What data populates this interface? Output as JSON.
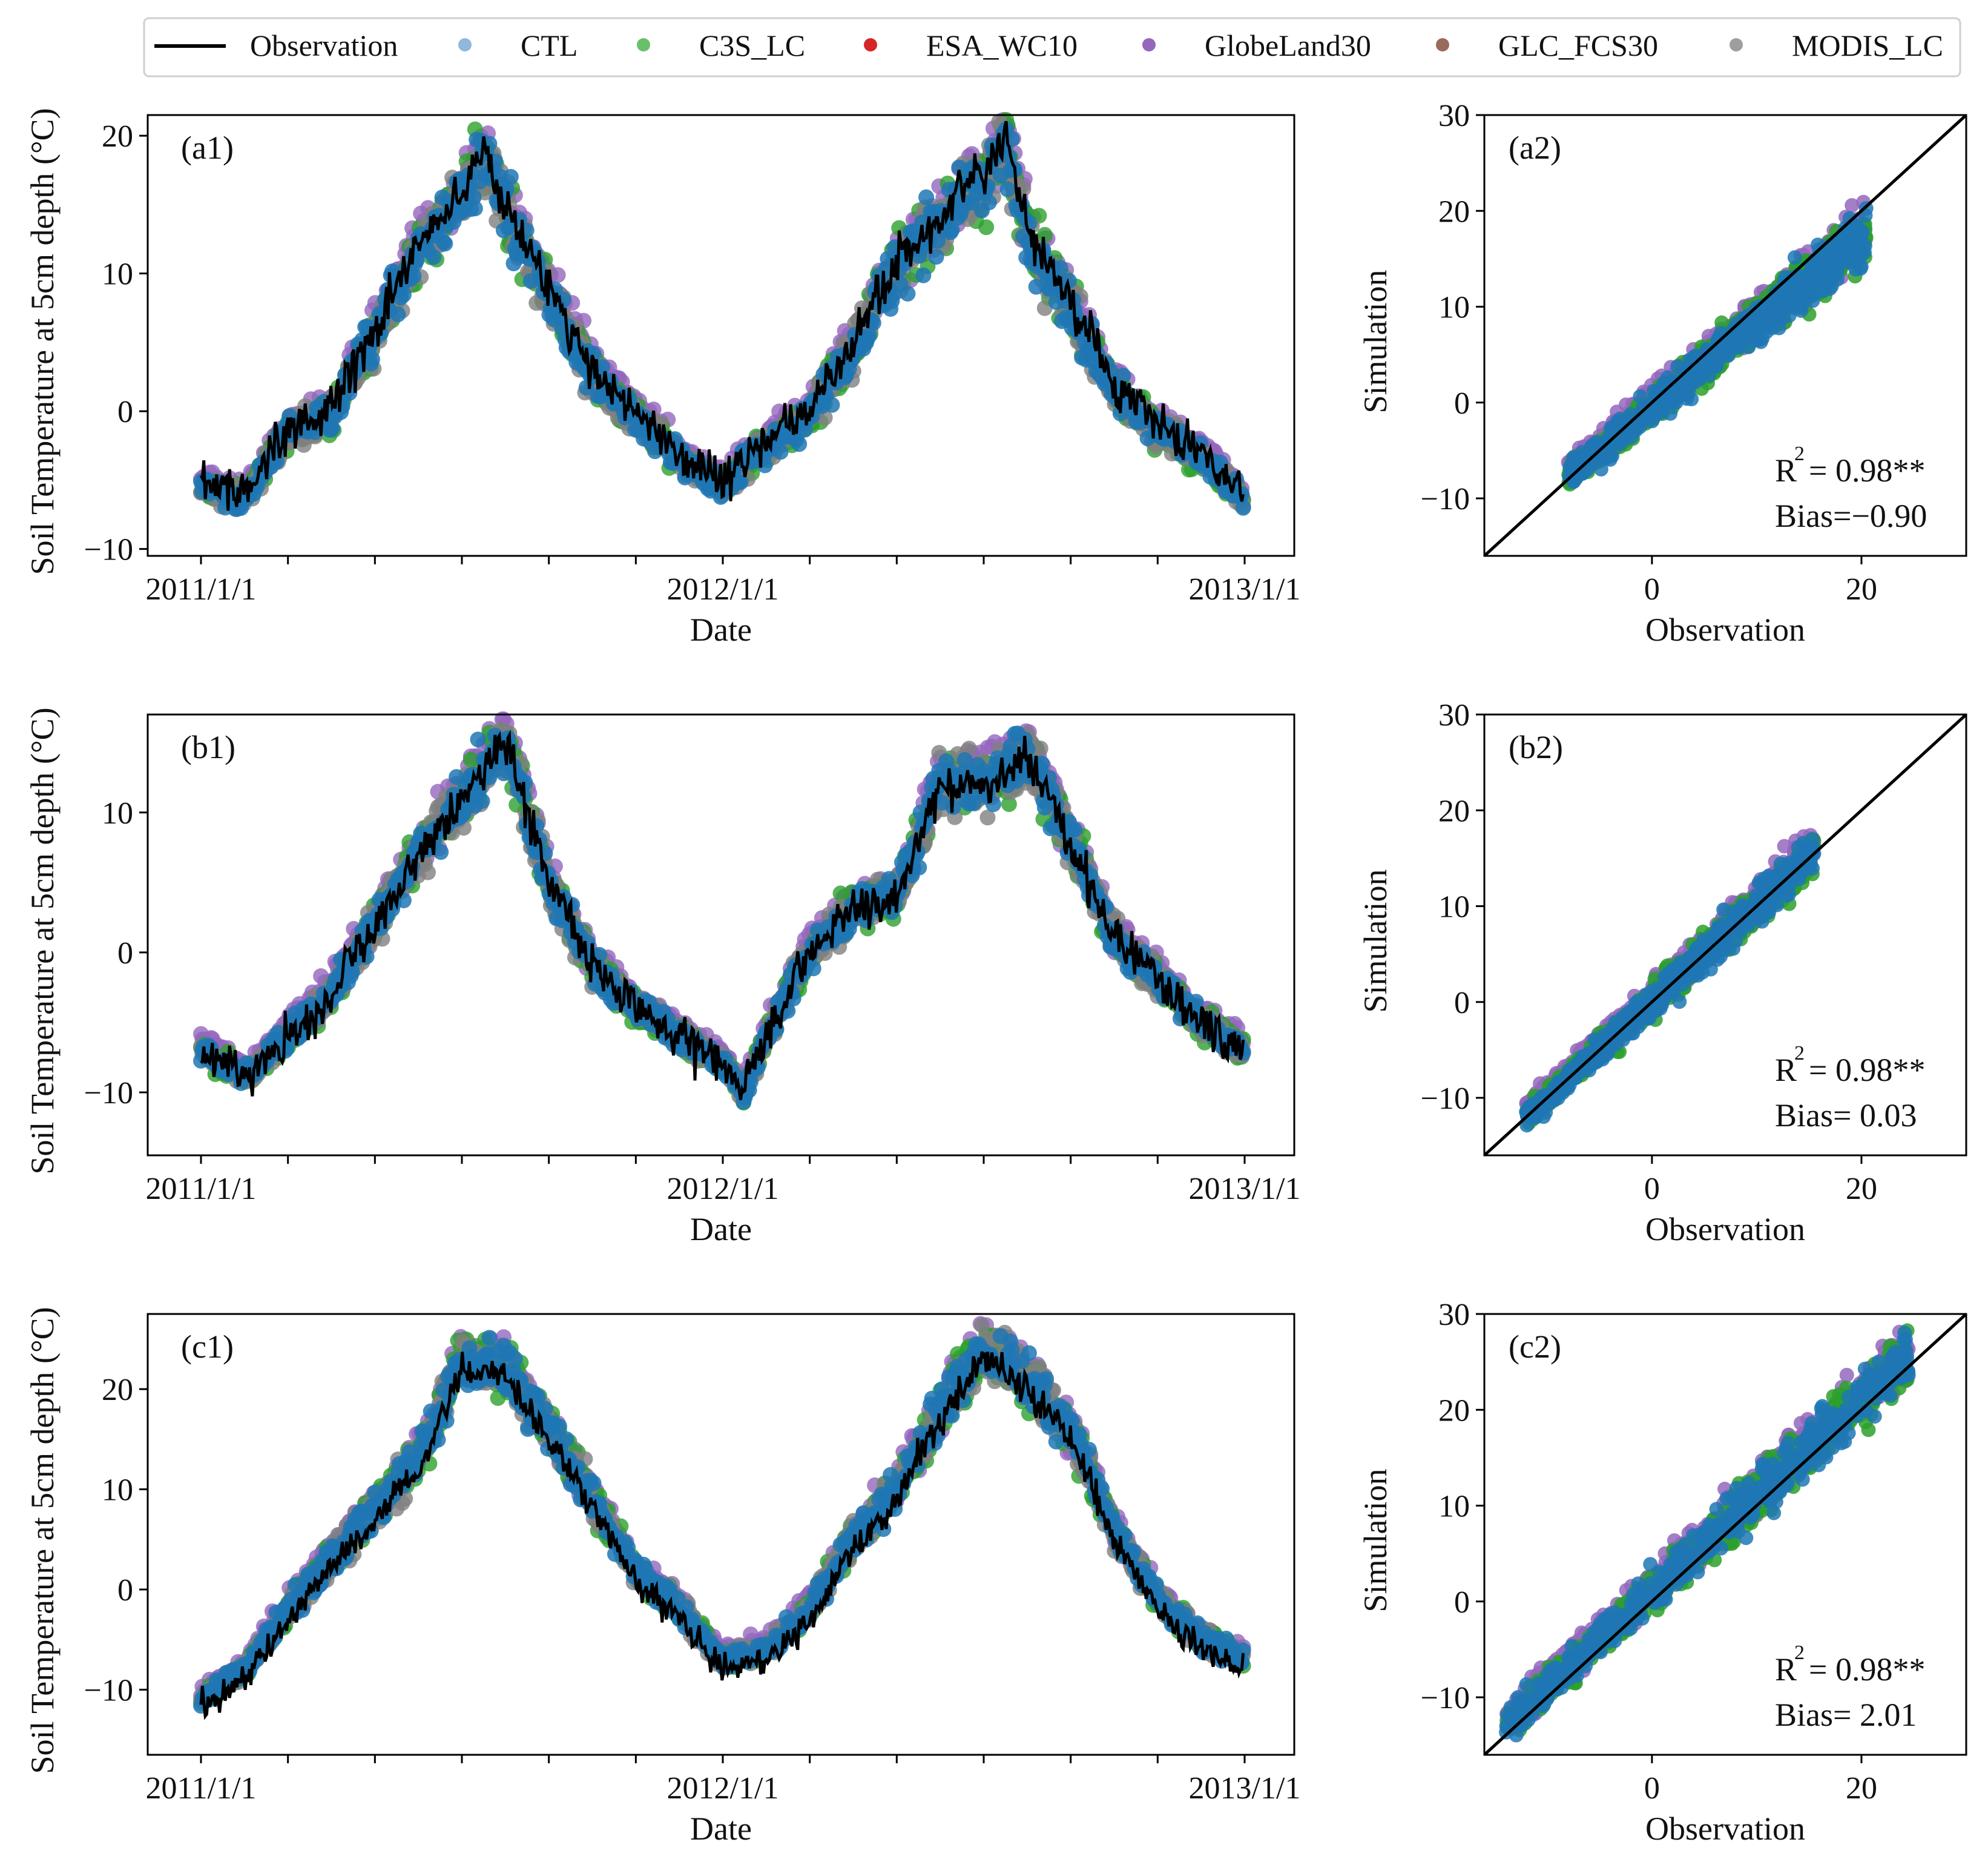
{
  "legend": {
    "entries": [
      {
        "name": "Observation",
        "kind": "line",
        "color": "#000000"
      },
      {
        "name": "CTL",
        "kind": "dot",
        "color": "#8fb8dc"
      },
      {
        "name": "C3S_LC",
        "kind": "dot",
        "color": "#6abf6a"
      },
      {
        "name": "ESA_WC10",
        "kind": "dot",
        "color": "#d62728"
      },
      {
        "name": "GlobeLand30",
        "kind": "dot",
        "color": "#9467bd"
      },
      {
        "name": "GLC_FCS30",
        "kind": "dot",
        "color": "#9a6a5a"
      },
      {
        "name": "MODIS_LC",
        "kind": "dot",
        "color": "#9e9e9e"
      }
    ]
  },
  "colors": {
    "observation": "#000000",
    "ctl_marker": "#1f77b4",
    "c3s_marker": "#2ca02c",
    "globeland_marker": "#9467bd",
    "modis_marker": "#7f7f7f"
  },
  "chart_data": [
    {
      "id": "a1",
      "type": "line",
      "label": "(a1)",
      "title": "",
      "xlabel": "Date",
      "ylabel": "Soil Temperature at 5cm depth (°C)",
      "x_ticks": [
        "2011/1/1",
        "2012/1/1",
        "2013/1/1"
      ],
      "ylim": [
        -10.5,
        21.5
      ],
      "y_ticks": [
        -10,
        0,
        10,
        20
      ],
      "y_tick_labels": [
        "−10",
        "0",
        "10",
        "20"
      ],
      "series": [
        {
          "name": "Observation",
          "month": [
            0,
            1,
            2,
            3,
            4,
            5,
            5.5,
            6,
            6.5,
            7,
            8,
            9,
            10,
            11,
            12,
            13,
            14,
            15,
            16,
            17,
            17.5,
            18,
            18.5,
            19,
            20,
            21,
            22,
            23,
            24
          ],
          "values": [
            -5,
            -6,
            -1,
            0,
            6,
            12,
            14,
            16,
            19,
            15,
            9,
            3,
            0,
            -3,
            -5,
            -2,
            0,
            5,
            11,
            14,
            16,
            17,
            20,
            13,
            8,
            2,
            -1,
            -3,
            -6
          ]
        }
      ],
      "sim_offset": -0.9,
      "noise": 1.7
    },
    {
      "id": "a2",
      "type": "scatter",
      "label": "(a2)",
      "xlabel": "Observation",
      "ylabel": "Simulation",
      "xlim": [
        -16,
        30
      ],
      "ylim": [
        -16,
        30
      ],
      "x_ticks": [
        0,
        20
      ],
      "y_ticks": [
        -10,
        0,
        10,
        20,
        30
      ],
      "y_tick_labels": [
        "−10",
        "0",
        "10",
        "20",
        "30"
      ],
      "obs_range": [
        -8,
        20.5
      ],
      "bias": -0.9,
      "noise": 1.6,
      "r2_label": "R",
      "r2_value": "= 0.98**",
      "bias_label": "Bias=−0.90"
    },
    {
      "id": "b1",
      "type": "line",
      "label": "(b1)",
      "title": "",
      "xlabel": "Date",
      "ylabel": "Soil Temperature at 5cm depth (°C)",
      "x_ticks": [
        "2011/1/1",
        "2012/1/1",
        "2013/1/1"
      ],
      "ylim": [
        -14.5,
        17
      ],
      "y_ticks": [
        -10,
        0,
        10
      ],
      "y_tick_labels": [
        "−10",
        "0",
        "10"
      ],
      "series": [
        {
          "name": "Observation",
          "month": [
            0,
            1,
            2,
            3,
            4,
            5,
            6,
            6.5,
            7,
            8,
            9,
            10,
            11,
            12,
            12.5,
            13,
            14,
            15,
            16,
            17,
            18,
            19,
            20,
            21,
            22,
            23,
            24
          ],
          "values": [
            -7,
            -9,
            -6,
            -3,
            2,
            7,
            11,
            13,
            15,
            5,
            -1,
            -4,
            -6,
            -8,
            -10,
            -6,
            0,
            3,
            4,
            12,
            12,
            14,
            8,
            1,
            -2,
            -5,
            -7
          ]
        }
      ],
      "sim_offset": 0.03,
      "noise": 1.4
    },
    {
      "id": "b2",
      "type": "scatter",
      "label": "(b2)",
      "xlabel": "Observation",
      "ylabel": "Simulation",
      "xlim": [
        -16,
        30
      ],
      "ylim": [
        -16,
        30
      ],
      "x_ticks": [
        0,
        20
      ],
      "y_ticks": [
        -10,
        0,
        10,
        20,
        30
      ],
      "y_tick_labels": [
        "−10",
        "0",
        "10",
        "20",
        "30"
      ],
      "obs_range": [
        -12,
        15.5
      ],
      "bias": 0.03,
      "noise": 1.3,
      "r2_label": "R",
      "r2_value": "= 0.98**",
      "bias_label": "Bias= 0.03"
    },
    {
      "id": "c1",
      "type": "line",
      "label": "(c1)",
      "title": "",
      "xlabel": "Date",
      "ylabel": "Soil Temperature at 5cm depth (°C)",
      "x_ticks": [
        "2011/1/1",
        "2012/1/1",
        "2013/1/1"
      ],
      "ylim": [
        -16.5,
        27.5
      ],
      "y_ticks": [
        -10,
        0,
        10,
        20
      ],
      "y_tick_labels": [
        "−10",
        "0",
        "10",
        "20"
      ],
      "series": [
        {
          "name": "Observation",
          "month": [
            0,
            1,
            2,
            3,
            4,
            5,
            6,
            7,
            8,
            9,
            10,
            11,
            12,
            13,
            14,
            15,
            16,
            17,
            18,
            19,
            20,
            21,
            22,
            23,
            24
          ],
          "values": [
            -12,
            -9,
            -3,
            2,
            7,
            12,
            22,
            21,
            15,
            8,
            1,
            -3,
            -8,
            -7,
            -3,
            4,
            9,
            17,
            23,
            20,
            15,
            5,
            -2,
            -6,
            -8
          ]
        }
      ],
      "sim_offset": 2.01,
      "noise": 1.8
    },
    {
      "id": "c2",
      "type": "scatter",
      "label": "(c2)",
      "xlabel": "Observation",
      "ylabel": "Simulation",
      "xlim": [
        -16,
        30
      ],
      "ylim": [
        -16,
        30
      ],
      "x_ticks": [
        0,
        20
      ],
      "y_ticks": [
        -10,
        0,
        10,
        20,
        30
      ],
      "y_tick_labels": [
        "−10",
        "0",
        "10",
        "20",
        "30"
      ],
      "obs_range": [
        -14,
        24.5
      ],
      "bias": 2.01,
      "noise": 1.8,
      "r2_label": "R",
      "r2_value": "= 0.98**",
      "bias_label": "Bias= 2.01"
    }
  ]
}
